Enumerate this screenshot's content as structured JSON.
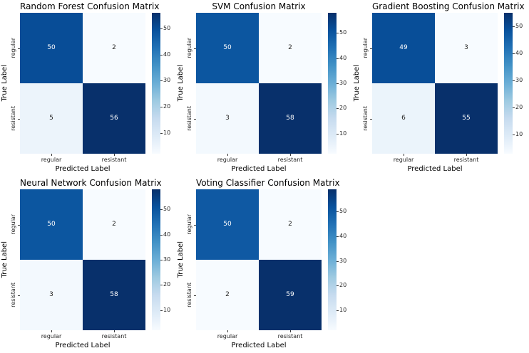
{
  "figure": {
    "background": "#ffffff"
  },
  "colormap": {
    "name": "Blues",
    "stops": [
      "#f7fbff",
      "#deebf7",
      "#c6dbef",
      "#9ecae1",
      "#6baed6",
      "#4292c6",
      "#2171b5",
      "#08519c",
      "#08306b"
    ],
    "annotation_text_light": "#ffffff",
    "annotation_text_dark": "#262626",
    "tick_text_color": "#262626",
    "label_text_color": "#000000"
  },
  "chart_data": [
    {
      "type": "heatmap",
      "title": "Random Forest Confusion Matrix",
      "xlabel": "Predicted Label",
      "ylabel": "True Label",
      "x_ticks": [
        "regular",
        "resistant"
      ],
      "y_ticks": [
        "regular",
        "resistant"
      ],
      "values": [
        [
          50,
          2
        ],
        [
          5,
          56
        ]
      ],
      "colorbar_ticks": [
        10,
        20,
        30,
        40,
        50
      ],
      "colorbar_range": [
        2,
        56
      ],
      "legend": "colorbar-right"
    },
    {
      "type": "heatmap",
      "title": "SVM Confusion Matrix",
      "xlabel": "Predicted Label",
      "ylabel": "True Label",
      "x_ticks": [
        "regular",
        "resistant"
      ],
      "y_ticks": [
        "regular",
        "resistant"
      ],
      "values": [
        [
          50,
          2
        ],
        [
          3,
          58
        ]
      ],
      "colorbar_ticks": [
        10,
        20,
        30,
        40,
        50
      ],
      "colorbar_range": [
        2,
        58
      ],
      "legend": "colorbar-right"
    },
    {
      "type": "heatmap",
      "title": "Gradient Boosting Confusion Matrix",
      "xlabel": "Predicted Label",
      "ylabel": "True Label",
      "x_ticks": [
        "regular",
        "resistant"
      ],
      "y_ticks": [
        "regular",
        "resistant"
      ],
      "values": [
        [
          49,
          3
        ],
        [
          6,
          55
        ]
      ],
      "colorbar_ticks": [
        10,
        20,
        30,
        40,
        50
      ],
      "colorbar_range": [
        3,
        55
      ],
      "legend": "colorbar-right"
    },
    {
      "type": "heatmap",
      "title": "Neural Network Confusion Matrix",
      "xlabel": "Predicted Label",
      "ylabel": "True Label",
      "x_ticks": [
        "regular",
        "resistant"
      ],
      "y_ticks": [
        "regular",
        "resistant"
      ],
      "values": [
        [
          50,
          2
        ],
        [
          3,
          58
        ]
      ],
      "colorbar_ticks": [
        10,
        20,
        30,
        40,
        50
      ],
      "colorbar_range": [
        2,
        58
      ],
      "legend": "colorbar-right"
    },
    {
      "type": "heatmap",
      "title": "Voting Classifier Confusion Matrix",
      "xlabel": "Predicted Label",
      "ylabel": "True Label",
      "x_ticks": [
        "regular",
        "resistant"
      ],
      "y_ticks": [
        "regular",
        "resistant"
      ],
      "values": [
        [
          50,
          2
        ],
        [
          2,
          59
        ]
      ],
      "colorbar_ticks": [
        10,
        20,
        30,
        40,
        50
      ],
      "colorbar_range": [
        2,
        59
      ],
      "legend": "colorbar-right"
    }
  ]
}
